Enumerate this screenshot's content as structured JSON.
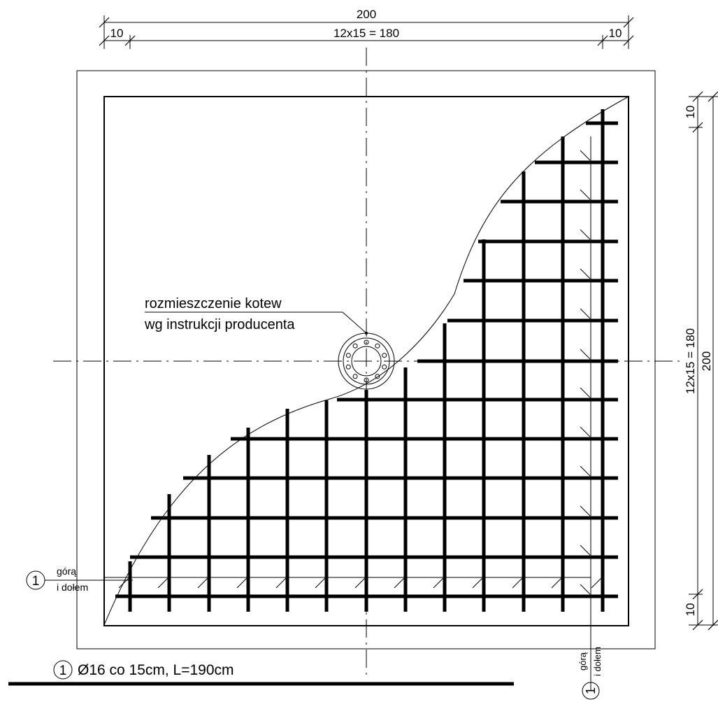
{
  "top_dimension": {
    "overall": "200",
    "middle": "12x15 = 180",
    "left_end": "10",
    "right_end": "10"
  },
  "right_dimension": {
    "overall": "200",
    "middle": "12x15 = 180",
    "top_end": "10",
    "bottom_end": "10"
  },
  "anchor_note": {
    "line1": "rozmieszczenie kotew",
    "line2": "wg instrukcji producenta"
  },
  "bar_mark_left": {
    "number": "1",
    "line1": "górą",
    "line2": "i dołem"
  },
  "bar_mark_bottom": {
    "number": "1",
    "line1": "górą",
    "line2": "i dołem"
  },
  "legend": {
    "number": "1",
    "text": "Ø16 co 15cm, L=190cm"
  }
}
